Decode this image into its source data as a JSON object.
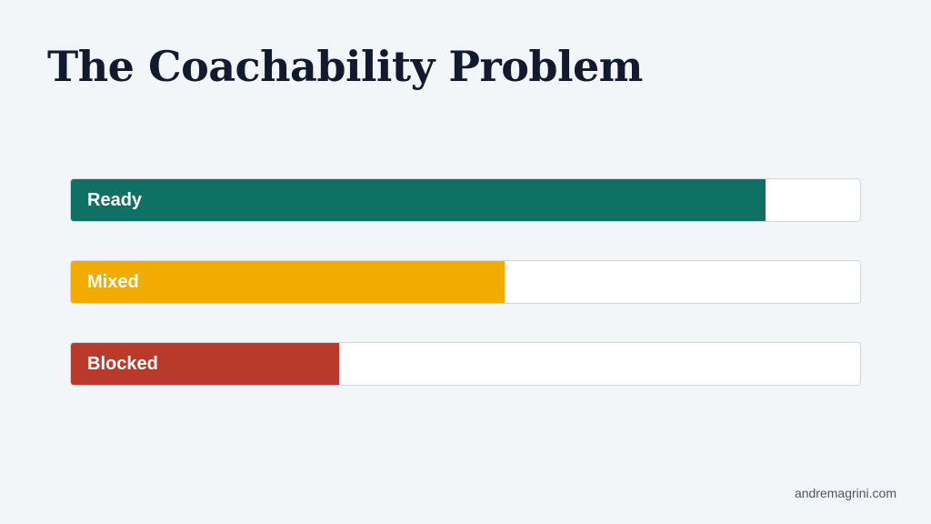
{
  "slide": {
    "title": "The Coachability Problem",
    "footer": "andremagrini.com"
  },
  "bars": [
    {
      "label": "Ready",
      "value": 0.88,
      "color": "#0f7163"
    },
    {
      "label": "Mixed",
      "value": 0.55,
      "color": "#f2ab00"
    },
    {
      "label": "Blocked",
      "value": 0.34,
      "color": "#b93a2a"
    }
  ],
  "colors": {
    "background": "#f3f6f9",
    "title": "#111a2e",
    "track": "#ffffff",
    "track_border": "#cfd8e1"
  }
}
